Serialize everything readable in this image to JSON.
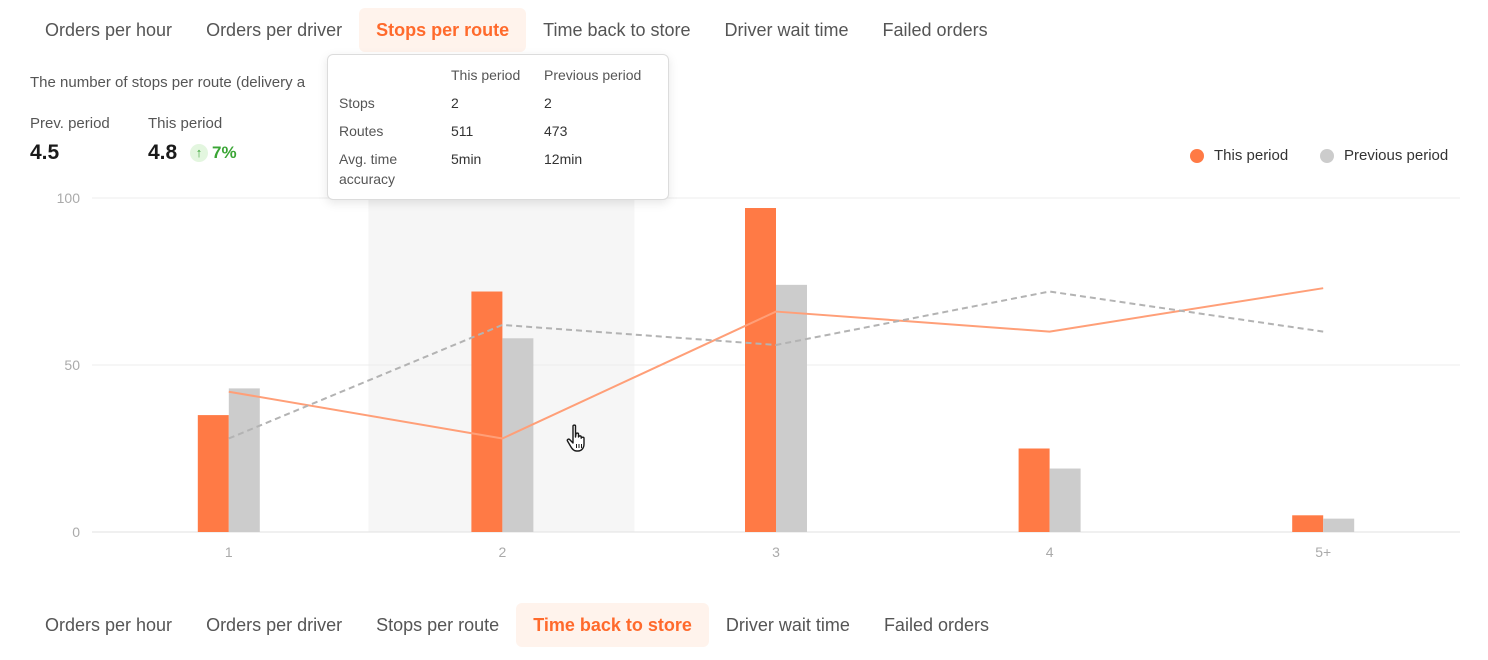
{
  "tabs_top": [
    {
      "label": "Orders per hour",
      "active": false
    },
    {
      "label": "Orders per driver",
      "active": false
    },
    {
      "label": "Stops per route",
      "active": true
    },
    {
      "label": "Time back to store",
      "active": false
    },
    {
      "label": "Driver wait time",
      "active": false
    },
    {
      "label": "Failed orders",
      "active": false
    }
  ],
  "tabs_bottom": [
    {
      "label": "Orders per hour",
      "active": false
    },
    {
      "label": "Orders per driver",
      "active": false
    },
    {
      "label": "Stops per route",
      "active": false
    },
    {
      "label": "Time back to store",
      "active": true
    },
    {
      "label": "Driver wait time",
      "active": false
    },
    {
      "label": "Failed orders",
      "active": false
    }
  ],
  "description": "The number of stops per route (delivery a",
  "stats": {
    "prev_label": "Prev. period",
    "prev_value": "4.5",
    "this_label": "This period",
    "this_value": "4.8",
    "delta": "7%",
    "delta_icon": "arrow-up-icon"
  },
  "legend": {
    "this_period": "This period",
    "previous_period": "Previous period"
  },
  "colors": {
    "accent": "#ff7a45",
    "previous": "#cccccc",
    "line_this": "#ff9f78",
    "line_prev": "#b3b3b3",
    "positive": "#3aa535"
  },
  "tooltip": {
    "header_this": "This period",
    "header_prev": "Previous period",
    "rows": [
      {
        "label": "Stops",
        "this": "2",
        "prev": "2"
      },
      {
        "label": "Routes",
        "this": "511",
        "prev": "473"
      },
      {
        "label": "Avg. time accuracy",
        "this": "5min",
        "prev": "12min"
      }
    ]
  },
  "chart_data": {
    "type": "bar",
    "categories": [
      "1",
      "2",
      "3",
      "4",
      "5+"
    ],
    "ylim": [
      0,
      100
    ],
    "yticks": [
      0,
      50,
      100
    ],
    "highlighted_category": "2",
    "series": [
      {
        "name": "This period",
        "kind": "bar",
        "values": [
          35,
          72,
          97,
          25,
          5
        ]
      },
      {
        "name": "Previous period",
        "kind": "bar",
        "values": [
          43,
          58,
          74,
          19,
          4
        ]
      },
      {
        "name": "This period",
        "kind": "line",
        "values": [
          42,
          28,
          66,
          60,
          73
        ]
      },
      {
        "name": "Previous period",
        "kind": "line",
        "style": "dashed",
        "values": [
          28,
          62,
          56,
          72,
          60
        ]
      }
    ]
  }
}
